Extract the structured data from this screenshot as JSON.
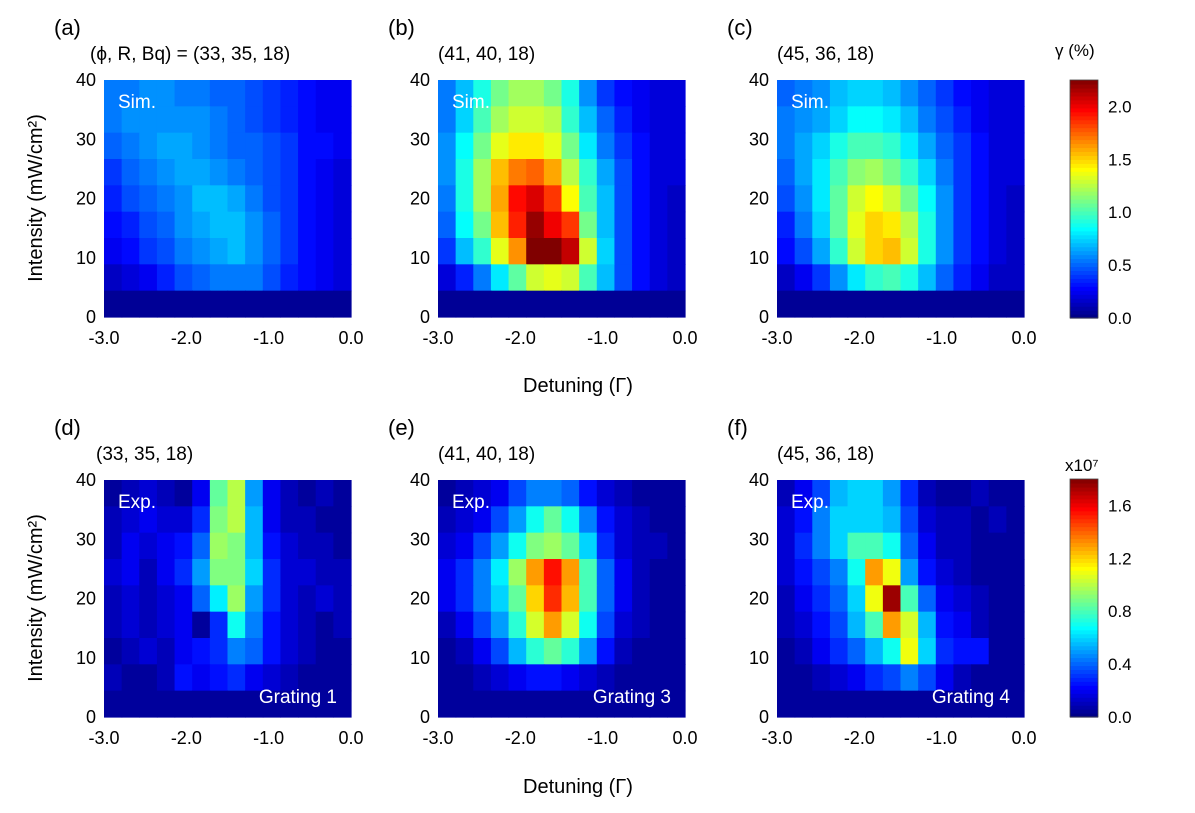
{
  "figure": {
    "xlabel": "Detuning (Γ)",
    "ylabel": "Intensity (mW/cm²)"
  },
  "chart_data": [
    {
      "type": "heatmap",
      "panel": "(a)",
      "param_label": "(ϕ, R, Bq) = (33, 35, 18)",
      "inset_label": "Sim.",
      "corner_label": "",
      "xlim": [
        -3.0,
        0.0
      ],
      "ylim": [
        0,
        40
      ],
      "xticks": [
        "-3.0",
        "-2.0",
        "-1.0",
        "0.0"
      ],
      "yticks": [
        "0",
        "10",
        "20",
        "30",
        "40"
      ],
      "colorbar_index": 0,
      "grid": [
        [
          0.55,
          0.55,
          0.6,
          0.6,
          0.55,
          0.55,
          0.5,
          0.5,
          0.45,
          0.4,
          0.35,
          0.3,
          0.25,
          0.25
        ],
        [
          0.55,
          0.6,
          0.6,
          0.6,
          0.6,
          0.6,
          0.55,
          0.5,
          0.45,
          0.4,
          0.35,
          0.3,
          0.25,
          0.25
        ],
        [
          0.5,
          0.55,
          0.6,
          0.65,
          0.65,
          0.6,
          0.55,
          0.5,
          0.5,
          0.45,
          0.4,
          0.3,
          0.3,
          0.25
        ],
        [
          0.4,
          0.5,
          0.55,
          0.6,
          0.65,
          0.65,
          0.6,
          0.55,
          0.5,
          0.45,
          0.4,
          0.3,
          0.25,
          0.2
        ],
        [
          0.35,
          0.45,
          0.5,
          0.55,
          0.6,
          0.7,
          0.7,
          0.65,
          0.55,
          0.45,
          0.4,
          0.3,
          0.25,
          0.2
        ],
        [
          0.3,
          0.35,
          0.45,
          0.5,
          0.6,
          0.65,
          0.7,
          0.7,
          0.6,
          0.5,
          0.4,
          0.3,
          0.25,
          0.2
        ],
        [
          0.25,
          0.3,
          0.4,
          0.45,
          0.55,
          0.6,
          0.65,
          0.7,
          0.6,
          0.5,
          0.4,
          0.3,
          0.25,
          0.2
        ],
        [
          0.15,
          0.2,
          0.25,
          0.35,
          0.45,
          0.5,
          0.55,
          0.55,
          0.55,
          0.45,
          0.35,
          0.3,
          0.25,
          0.2
        ],
        [
          0.05,
          0.05,
          0.05,
          0.05,
          0.05,
          0.05,
          0.05,
          0.05,
          0.05,
          0.05,
          0.05,
          0.05,
          0.05,
          0.05
        ]
      ]
    },
    {
      "type": "heatmap",
      "panel": "(b)",
      "param_label": "(41, 40, 18)",
      "inset_label": "Sim.",
      "corner_label": "",
      "xlim": [
        -3.0,
        0.0
      ],
      "ylim": [
        0,
        40
      ],
      "xticks": [
        "-3.0",
        "-2.0",
        "-1.0",
        "0.0"
      ],
      "yticks": [
        "0",
        "10",
        "20",
        "30",
        "40"
      ],
      "colorbar_index": 0,
      "grid": [
        [
          0.55,
          0.7,
          0.9,
          1.1,
          1.2,
          1.2,
          1.1,
          0.9,
          0.6,
          0.4,
          0.3,
          0.25,
          0.2,
          0.2
        ],
        [
          0.55,
          0.75,
          1.0,
          1.2,
          1.3,
          1.3,
          1.25,
          0.95,
          0.7,
          0.5,
          0.35,
          0.25,
          0.2,
          0.2
        ],
        [
          0.6,
          0.85,
          1.1,
          1.35,
          1.45,
          1.45,
          1.35,
          1.1,
          0.8,
          0.55,
          0.4,
          0.3,
          0.2,
          0.2
        ],
        [
          0.6,
          0.9,
          1.2,
          1.55,
          1.7,
          1.75,
          1.6,
          1.25,
          0.95,
          0.65,
          0.45,
          0.3,
          0.2,
          0.2
        ],
        [
          0.55,
          0.9,
          1.2,
          1.6,
          1.95,
          2.05,
          1.85,
          1.4,
          1.0,
          0.7,
          0.45,
          0.3,
          0.2,
          0.15
        ],
        [
          0.5,
          0.85,
          1.1,
          1.55,
          1.9,
          2.2,
          2.0,
          1.85,
          1.1,
          0.7,
          0.45,
          0.3,
          0.2,
          0.15
        ],
        [
          0.4,
          0.7,
          0.95,
          1.35,
          1.65,
          2.25,
          2.25,
          2.1,
          1.3,
          0.75,
          0.45,
          0.3,
          0.2,
          0.15
        ],
        [
          0.2,
          0.35,
          0.55,
          0.8,
          1.05,
          1.3,
          1.35,
          1.3,
          1.0,
          0.7,
          0.45,
          0.3,
          0.2,
          0.15
        ],
        [
          0.05,
          0.05,
          0.05,
          0.05,
          0.05,
          0.05,
          0.05,
          0.05,
          0.05,
          0.05,
          0.05,
          0.05,
          0.05,
          0.05
        ]
      ]
    },
    {
      "type": "heatmap",
      "panel": "(c)",
      "param_label": "(45, 36, 18)",
      "inset_label": "Sim.",
      "corner_label": "",
      "xlim": [
        -3.0,
        0.0
      ],
      "ylim": [
        0,
        40
      ],
      "xticks": [
        "-3.0",
        "-2.0",
        "-1.0",
        "0.0"
      ],
      "yticks": [
        "0",
        "10",
        "20",
        "30",
        "40"
      ],
      "colorbar_index": 0,
      "grid": [
        [
          0.5,
          0.55,
          0.6,
          0.7,
          0.75,
          0.75,
          0.7,
          0.6,
          0.5,
          0.4,
          0.3,
          0.25,
          0.2,
          0.2
        ],
        [
          0.55,
          0.6,
          0.65,
          0.75,
          0.85,
          0.85,
          0.8,
          0.7,
          0.55,
          0.45,
          0.35,
          0.25,
          0.2,
          0.2
        ],
        [
          0.55,
          0.65,
          0.75,
          0.9,
          1.0,
          1.0,
          0.95,
          0.8,
          0.65,
          0.5,
          0.4,
          0.3,
          0.2,
          0.2
        ],
        [
          0.5,
          0.65,
          0.8,
          1.0,
          1.15,
          1.2,
          1.1,
          0.95,
          0.75,
          0.55,
          0.4,
          0.3,
          0.2,
          0.2
        ],
        [
          0.45,
          0.6,
          0.8,
          1.05,
          1.3,
          1.4,
          1.3,
          1.1,
          0.85,
          0.6,
          0.4,
          0.3,
          0.2,
          0.15
        ],
        [
          0.35,
          0.55,
          0.75,
          1.05,
          1.35,
          1.5,
          1.45,
          1.25,
          0.9,
          0.6,
          0.4,
          0.3,
          0.2,
          0.15
        ],
        [
          0.3,
          0.45,
          0.65,
          0.95,
          1.3,
          1.5,
          1.55,
          1.3,
          0.9,
          0.6,
          0.4,
          0.3,
          0.2,
          0.15
        ],
        [
          0.15,
          0.25,
          0.4,
          0.6,
          0.8,
          0.95,
          1.0,
          0.9,
          0.7,
          0.5,
          0.35,
          0.25,
          0.15,
          0.15
        ],
        [
          0.05,
          0.05,
          0.05,
          0.05,
          0.05,
          0.05,
          0.05,
          0.05,
          0.05,
          0.05,
          0.05,
          0.05,
          0.05,
          0.05
        ]
      ]
    },
    {
      "type": "heatmap",
      "panel": "(d)",
      "param_label": "(33, 35, 18)",
      "inset_label": "Exp.",
      "corner_label": "Grating 1",
      "xlim": [
        -3.0,
        0.0
      ],
      "ylim": [
        0,
        40
      ],
      "xticks": [
        "-3.0",
        "-2.0",
        "-1.0",
        "0.0"
      ],
      "yticks": [
        "0",
        "10",
        "20",
        "30",
        "40"
      ],
      "colorbar_index": 1,
      "grid": [
        [
          0.05,
          0.1,
          0.15,
          0.1,
          0.05,
          0.2,
          0.85,
          1.0,
          0.5,
          0.2,
          0.1,
          0.05,
          0.1,
          0.05
        ],
        [
          0.1,
          0.15,
          0.2,
          0.15,
          0.15,
          0.3,
          0.9,
          1.0,
          0.55,
          0.2,
          0.1,
          0.1,
          0.05,
          0.05
        ],
        [
          0.1,
          0.2,
          0.15,
          0.2,
          0.25,
          0.4,
          0.95,
          0.9,
          0.55,
          0.25,
          0.15,
          0.1,
          0.1,
          0.05
        ],
        [
          0.15,
          0.2,
          0.1,
          0.2,
          0.3,
          0.5,
          0.9,
          0.9,
          0.6,
          0.3,
          0.15,
          0.15,
          0.1,
          0.1
        ],
        [
          0.1,
          0.15,
          0.1,
          0.15,
          0.2,
          0.4,
          0.65,
          0.95,
          0.5,
          0.3,
          0.15,
          0.1,
          0.15,
          0.1
        ],
        [
          0.1,
          0.15,
          0.1,
          0.15,
          0.2,
          0.05,
          0.3,
          0.7,
          0.45,
          0.25,
          0.15,
          0.1,
          0.05,
          0.1
        ],
        [
          0.05,
          0.1,
          0.15,
          0.1,
          0.2,
          0.25,
          0.3,
          0.45,
          0.4,
          0.25,
          0.15,
          0.1,
          0.05,
          0.05
        ],
        [
          0.1,
          0.05,
          0.05,
          0.1,
          0.25,
          0.2,
          0.25,
          0.3,
          0.2,
          0.15,
          0.1,
          0.05,
          0.05,
          0.05
        ],
        [
          0.05,
          0.05,
          0.05,
          0.05,
          0.05,
          0.05,
          0.05,
          0.05,
          0.05,
          0.05,
          0.05,
          0.05,
          0.05,
          0.05
        ]
      ]
    },
    {
      "type": "heatmap",
      "panel": "(e)",
      "param_label": "(41, 40, 18)",
      "inset_label": "Exp.",
      "corner_label": "Grating 3",
      "xlim": [
        -3.0,
        0.0
      ],
      "ylim": [
        0,
        40
      ],
      "xticks": [
        "-3.0",
        "-2.0",
        "-1.0",
        "0.0"
      ],
      "yticks": [
        "0",
        "10",
        "20",
        "30",
        "40"
      ],
      "colorbar_index": 1,
      "grid": [
        [
          0.05,
          0.1,
          0.15,
          0.2,
          0.35,
          0.45,
          0.45,
          0.4,
          0.25,
          0.15,
          0.1,
          0.05,
          0.05,
          0.05
        ],
        [
          0.1,
          0.15,
          0.2,
          0.35,
          0.5,
          0.7,
          0.85,
          0.7,
          0.45,
          0.25,
          0.15,
          0.1,
          0.05,
          0.05
        ],
        [
          0.15,
          0.2,
          0.35,
          0.5,
          0.7,
          0.9,
          0.95,
          0.85,
          0.6,
          0.3,
          0.15,
          0.1,
          0.1,
          0.05
        ],
        [
          0.2,
          0.3,
          0.45,
          0.65,
          0.95,
          1.3,
          1.55,
          1.3,
          0.8,
          0.4,
          0.2,
          0.1,
          0.05,
          0.05
        ],
        [
          0.2,
          0.3,
          0.45,
          0.6,
          0.85,
          1.2,
          1.5,
          1.25,
          0.8,
          0.4,
          0.2,
          0.1,
          0.05,
          0.05
        ],
        [
          0.1,
          0.2,
          0.35,
          0.5,
          0.75,
          1.05,
          1.3,
          1.05,
          0.7,
          0.35,
          0.15,
          0.1,
          0.05,
          0.05
        ],
        [
          0.05,
          0.1,
          0.2,
          0.35,
          0.55,
          0.75,
          0.85,
          0.75,
          0.5,
          0.25,
          0.1,
          0.05,
          0.05,
          0.05
        ],
        [
          0.05,
          0.05,
          0.1,
          0.15,
          0.2,
          0.25,
          0.25,
          0.2,
          0.15,
          0.1,
          0.05,
          0.05,
          0.05,
          0.05
        ],
        [
          0.05,
          0.05,
          0.05,
          0.05,
          0.05,
          0.05,
          0.05,
          0.05,
          0.05,
          0.05,
          0.05,
          0.05,
          0.05,
          0.05
        ]
      ]
    },
    {
      "type": "heatmap",
      "panel": "(f)",
      "param_label": "(45, 36, 18)",
      "inset_label": "Exp.",
      "corner_label": "Grating 4",
      "xlim": [
        -3.0,
        0.0
      ],
      "ylim": [
        0,
        40
      ],
      "xticks": [
        "-3.0",
        "-2.0",
        "-1.0",
        "0.0"
      ],
      "yticks": [
        "0",
        "10",
        "20",
        "30",
        "40"
      ],
      "colorbar_index": 1,
      "grid": [
        [
          0.1,
          0.2,
          0.35,
          0.55,
          0.6,
          0.6,
          0.5,
          0.3,
          0.1,
          0.05,
          0.05,
          0.1,
          0.05,
          0.05
        ],
        [
          0.15,
          0.25,
          0.45,
          0.6,
          0.6,
          0.6,
          0.55,
          0.35,
          0.15,
          0.1,
          0.1,
          0.05,
          0.1,
          0.05
        ],
        [
          0.15,
          0.3,
          0.45,
          0.6,
          0.8,
          0.8,
          0.7,
          0.4,
          0.2,
          0.1,
          0.1,
          0.05,
          0.05,
          0.05
        ],
        [
          0.15,
          0.25,
          0.35,
          0.45,
          0.7,
          1.3,
          1.1,
          0.5,
          0.25,
          0.15,
          0.1,
          0.05,
          0.05,
          0.05
        ],
        [
          0.1,
          0.2,
          0.3,
          0.4,
          0.6,
          1.1,
          1.75,
          0.8,
          0.4,
          0.2,
          0.15,
          0.1,
          0.05,
          0.05
        ],
        [
          0.1,
          0.15,
          0.25,
          0.35,
          0.55,
          0.8,
          1.3,
          1.05,
          0.55,
          0.25,
          0.2,
          0.1,
          0.05,
          0.05
        ],
        [
          0.05,
          0.1,
          0.2,
          0.3,
          0.4,
          0.55,
          0.7,
          1.1,
          0.6,
          0.3,
          0.25,
          0.25,
          0.05,
          0.05
        ],
        [
          0.05,
          0.05,
          0.1,
          0.15,
          0.2,
          0.3,
          0.35,
          0.45,
          0.35,
          0.2,
          0.1,
          0.05,
          0.05,
          0.05
        ],
        [
          0.05,
          0.05,
          0.05,
          0.05,
          0.05,
          0.05,
          0.05,
          0.05,
          0.05,
          0.05,
          0.05,
          0.05,
          0.05,
          0.05
        ]
      ]
    }
  ],
  "colorbars": [
    {
      "label": "γ (%)",
      "multiplier": "",
      "min": 0.0,
      "max": 2.25,
      "ticks": [
        0.0,
        0.5,
        1.0,
        1.5,
        2.0
      ],
      "tick_labels": [
        "0.0",
        "0.5",
        "1.0",
        "1.5",
        "2.0"
      ]
    },
    {
      "label": "",
      "multiplier": "x10⁷",
      "min": 0.0,
      "max": 1.8,
      "ticks": [
        0.0,
        0.4,
        0.8,
        1.2,
        1.6
      ],
      "tick_labels": [
        "0.0",
        "0.4",
        "0.8",
        "1.2",
        "1.6"
      ]
    }
  ]
}
